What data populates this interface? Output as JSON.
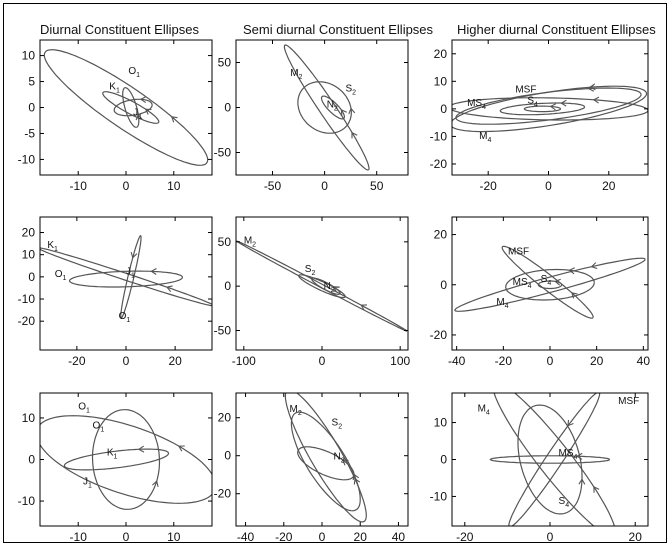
{
  "column_titles": {
    "col1": "Diurnal Constituent Ellipses",
    "col2": "Semi diurnal Constituent Ellipses",
    "col3": "Higher diurnal Constituent Ellipses"
  },
  "colors": {
    "curve": "#555555",
    "axis": "#000000",
    "background": "#ffffff"
  },
  "chart_data": [
    {
      "type": "scatter",
      "row": 1,
      "col": 1,
      "title": "Diurnal Constituent Ellipses",
      "xlim": [
        -18,
        18
      ],
      "ylim": [
        -13,
        13
      ],
      "xticks": [
        -10,
        0,
        10
      ],
      "yticks": [
        -10,
        -5,
        0,
        5,
        10
      ],
      "ellipses": [
        {
          "cx": 0,
          "cy": 0,
          "a": 20,
          "b": 4,
          "angle": -32
        },
        {
          "cx": 1,
          "cy": 0,
          "a": 6.5,
          "b": 1.2,
          "angle": -26
        },
        {
          "cx": 1.5,
          "cy": 0,
          "a": 4,
          "b": 1.5,
          "angle": 8
        },
        {
          "cx": 1,
          "cy": 0,
          "a": 4,
          "b": 1.2,
          "angle": -72
        }
      ],
      "labels": [
        {
          "main": "O",
          "sub": "1",
          "x": 0.5,
          "y": 6.5
        },
        {
          "main": "K",
          "sub": "1",
          "x": -3.5,
          "y": 3.5
        },
        {
          "main": "J",
          "sub": "1",
          "x": 1.5,
          "y": -1.5
        }
      ]
    },
    {
      "type": "scatter",
      "row": 1,
      "col": 2,
      "title": "Semi diurnal Constituent Ellipses",
      "xlim": [
        -85,
        80
      ],
      "ylim": [
        -75,
        75
      ],
      "xticks": [
        -50,
        0,
        50
      ],
      "yticks": [
        -50,
        0,
        50
      ],
      "ellipses": [
        {
          "cx": 2,
          "cy": 0,
          "a": 80,
          "b": 8,
          "angle": -60
        },
        {
          "cx": 0,
          "cy": 0,
          "a": 30,
          "b": 24,
          "angle": -60
        },
        {
          "cx": 8,
          "cy": 0,
          "a": 16,
          "b": 5,
          "angle": -50
        }
      ],
      "labels": [
        {
          "main": "M",
          "sub": "2",
          "x": -33,
          "y": 35
        },
        {
          "main": "S",
          "sub": "2",
          "x": 20,
          "y": 18
        },
        {
          "main": "N",
          "sub": "2",
          "x": 2,
          "y": 0
        }
      ]
    },
    {
      "type": "scatter",
      "row": 1,
      "col": 3,
      "title": "Higher diurnal Constituent Ellipses",
      "xlim": [
        -32,
        33
      ],
      "ylim": [
        -24,
        25
      ],
      "xticks": [
        -20,
        0,
        20
      ],
      "yticks": [
        -20,
        -10,
        0,
        10,
        20
      ],
      "ellipses": [
        {
          "cx": 0,
          "cy": 0,
          "a": 33,
          "b": 6,
          "angle": 10
        },
        {
          "cx": 0,
          "cy": 1,
          "a": 31,
          "b": 5,
          "angle": 8
        },
        {
          "cx": 0,
          "cy": 0,
          "a": 33,
          "b": 4,
          "angle": -1
        },
        {
          "cx": -2,
          "cy": 0,
          "a": 14,
          "b": 2,
          "angle": 3
        },
        {
          "cx": -2,
          "cy": 0,
          "a": 6,
          "b": 1,
          "angle": 0
        }
      ],
      "labels": [
        {
          "main": "MS",
          "sub": "4",
          "x": -27,
          "y": 1
        },
        {
          "main": "MSF",
          "sub": "",
          "x": -11,
          "y": 6
        },
        {
          "main": "S",
          "sub": "4",
          "x": -7,
          "y": 2
        },
        {
          "main": "M",
          "sub": "4",
          "x": -23,
          "y": -11
        }
      ]
    },
    {
      "type": "scatter",
      "row": 2,
      "col": 1,
      "xlim": [
        -35,
        35
      ],
      "ylim": [
        -33,
        27
      ],
      "xticks": [
        -20,
        0,
        20
      ],
      "yticks": [
        -20,
        -10,
        0,
        10,
        20
      ],
      "ellipses": [
        {
          "cx": 0,
          "cy": 0,
          "a": 38,
          "b": 1.5,
          "angle": -20
        },
        {
          "cx": 0,
          "cy": -1,
          "a": 23,
          "b": 3.5,
          "angle": 2
        },
        {
          "cx": 2,
          "cy": 0,
          "a": 19,
          "b": 1.2,
          "angle": 78
        }
      ],
      "labels": [
        {
          "main": "K",
          "sub": "1",
          "x": -32,
          "y": 13
        },
        {
          "main": "O",
          "sub": "1",
          "x": -29,
          "y": 0
        },
        {
          "main": "J",
          "sub": "1",
          "x": 0,
          "y": 1
        },
        {
          "main": "O",
          "sub": "1",
          "x": -3,
          "y": -19
        }
      ]
    },
    {
      "type": "scatter",
      "row": 2,
      "col": 2,
      "xlim": [
        -110,
        110
      ],
      "ylim": [
        -72,
        78
      ],
      "xticks": [
        -100,
        0,
        100
      ],
      "yticks": [
        -50,
        0,
        50
      ],
      "ellipses": [
        {
          "cx": 0,
          "cy": 0,
          "a": 120,
          "b": 2,
          "angle": -25
        },
        {
          "cx": 0,
          "cy": 0,
          "a": 32,
          "b": 5,
          "angle": -22
        },
        {
          "cx": 5,
          "cy": 0,
          "a": 20,
          "b": 4,
          "angle": -25
        }
      ],
      "labels": [
        {
          "main": "M",
          "sub": "2",
          "x": -100,
          "y": 48
        },
        {
          "main": "S",
          "sub": "2",
          "x": -22,
          "y": 16
        },
        {
          "main": "N",
          "sub": "2",
          "x": 2,
          "y": -3
        }
      ]
    },
    {
      "type": "scatter",
      "row": 2,
      "col": 3,
      "xlim": [
        -42,
        42
      ],
      "ylim": [
        -26,
        27
      ],
      "xticks": [
        -40,
        -20,
        0,
        20,
        40
      ],
      "yticks": [
        -20,
        0,
        20
      ],
      "ellipses": [
        {
          "cx": 0,
          "cy": 0,
          "a": 42,
          "b": 3,
          "angle": 14
        },
        {
          "cx": 0,
          "cy": 0,
          "a": 19,
          "b": 6,
          "angle": 3
        },
        {
          "cx": -1,
          "cy": 1,
          "a": 24,
          "b": 3,
          "angle": -36
        },
        {
          "cx": 0,
          "cy": 0,
          "a": 5,
          "b": 1.5,
          "angle": 0
        }
      ],
      "labels": [
        {
          "main": "MSF",
          "sub": "",
          "x": -18,
          "y": 12
        },
        {
          "main": "MS",
          "sub": "4",
          "x": -16,
          "y": 0
        },
        {
          "main": "S",
          "sub": "4",
          "x": -4,
          "y": 1
        },
        {
          "main": "M",
          "sub": "4",
          "x": -23,
          "y": -8
        }
      ]
    },
    {
      "type": "scatter",
      "row": 3,
      "col": 1,
      "xlim": [
        -18,
        18
      ],
      "ylim": [
        -16,
        16
      ],
      "xticks": [
        -10,
        0,
        10
      ],
      "yticks": [
        -10,
        0,
        10
      ],
      "ellipses": [
        {
          "cx": 0,
          "cy": 0,
          "a": 20,
          "b": 8,
          "angle": -22
        },
        {
          "cx": 0,
          "cy": 0,
          "a": 12,
          "b": 7,
          "angle": -88
        },
        {
          "cx": -2,
          "cy": 0,
          "a": 11,
          "b": 2,
          "angle": 8
        }
      ],
      "labels": [
        {
          "main": "O",
          "sub": "1",
          "x": -10,
          "y": 12
        },
        {
          "main": "O",
          "sub": "1",
          "x": -7,
          "y": 7.5
        },
        {
          "main": "K",
          "sub": "1",
          "x": -4,
          "y": 1
        },
        {
          "main": "J",
          "sub": "1",
          "x": -9,
          "y": -6
        }
      ]
    },
    {
      "type": "scatter",
      "row": 3,
      "col": 2,
      "xlim": [
        -45,
        45
      ],
      "ylim": [
        -37,
        33
      ],
      "xticks": [
        -40,
        -20,
        0,
        20,
        40
      ],
      "yticks": [
        -20,
        0,
        20
      ],
      "ellipses": [
        {
          "cx": 2,
          "cy": 0,
          "a": 40,
          "b": 8,
          "angle": -60
        },
        {
          "cx": 2,
          "cy": -3,
          "a": 30,
          "b": 10,
          "angle": -58
        },
        {
          "cx": 2,
          "cy": -4,
          "a": 16,
          "b": 6,
          "angle": -25
        }
      ],
      "labels": [
        {
          "main": "M",
          "sub": "2",
          "x": -17,
          "y": 23
        },
        {
          "main": "S",
          "sub": "2",
          "x": 5,
          "y": 16
        },
        {
          "main": "N",
          "sub": "2",
          "x": 6,
          "y": -2
        }
      ]
    },
    {
      "type": "scatter",
      "row": 3,
      "col": 3,
      "xlim": [
        -23,
        23
      ],
      "ylim": [
        -18,
        18
      ],
      "xticks": [
        -20,
        0,
        20
      ],
      "yticks": [
        -10,
        0,
        10
      ],
      "ellipses": [
        {
          "cx": 1,
          "cy": 0,
          "a": 25,
          "b": 4,
          "angle": -56
        },
        {
          "cx": 1,
          "cy": 0,
          "a": 21,
          "b": 2,
          "angle": 60
        },
        {
          "cx": 0,
          "cy": 0,
          "a": 15,
          "b": 7,
          "angle": -78
        },
        {
          "cx": 0,
          "cy": 0,
          "a": 14,
          "b": 1,
          "angle": 0
        }
      ],
      "labels": [
        {
          "main": "M",
          "sub": "4",
          "x": -17,
          "y": 13
        },
        {
          "main": "MSF",
          "sub": "",
          "x": 16,
          "y": 15
        },
        {
          "main": "MS",
          "sub": "4",
          "x": 2,
          "y": 1
        },
        {
          "main": "S",
          "sub": "4",
          "x": 2,
          "y": -12
        }
      ]
    }
  ]
}
